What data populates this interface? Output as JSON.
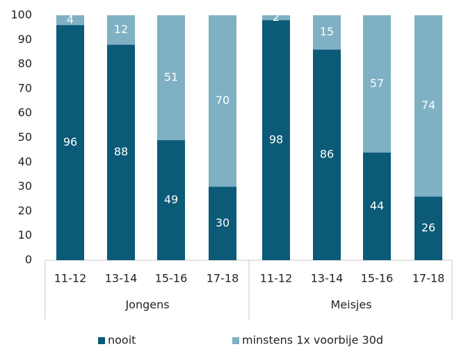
{
  "chart_data": {
    "type": "bar",
    "stacked": true,
    "ylim": [
      0,
      100
    ],
    "yticks": [
      0,
      10,
      20,
      30,
      40,
      50,
      60,
      70,
      80,
      90,
      100
    ],
    "groups": [
      {
        "label": "Jongens",
        "categories": [
          "11-12",
          "13-14",
          "15-16",
          "17-18"
        ]
      },
      {
        "label": "Meisjes",
        "categories": [
          "11-12",
          "13-14",
          "15-16",
          "17-18"
        ]
      }
    ],
    "series": [
      {
        "name": "nooit",
        "color": "#0b5a78",
        "values": [
          96,
          88,
          49,
          30,
          98,
          86,
          44,
          26
        ]
      },
      {
        "name": "minstens 1x  voorbije 30d",
        "color": "#7fb0c4",
        "values": [
          4,
          12,
          51,
          70,
          2,
          15,
          57,
          74
        ]
      }
    ],
    "legend": "bottom",
    "grid": false
  }
}
